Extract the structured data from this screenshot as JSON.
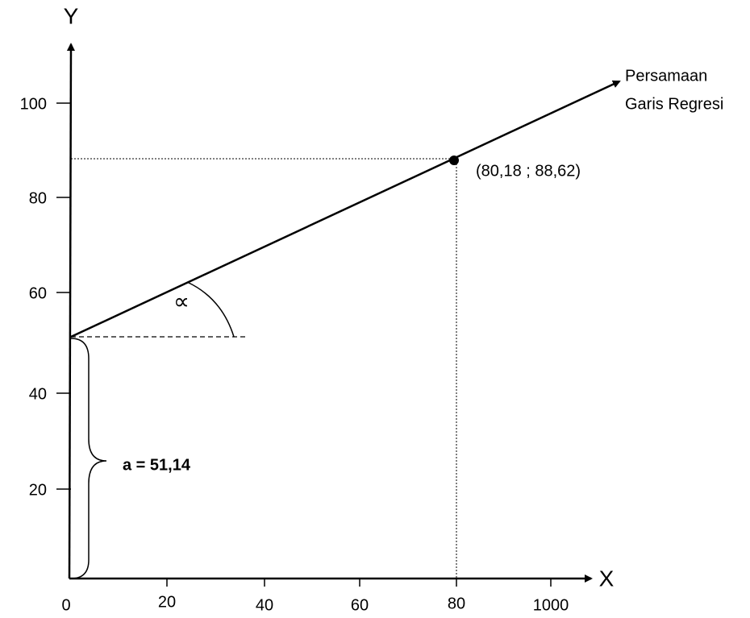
{
  "axes": {
    "y_label": "Y",
    "x_label": "X",
    "y_ticks": [
      "100",
      "80",
      "60",
      "40",
      "20"
    ],
    "x_ticks": [
      "0",
      "20",
      "40",
      "60",
      "80",
      "1000"
    ]
  },
  "annotations": {
    "angle": "∝",
    "intercept": "a = 51,14",
    "point": "(80,18 ; 88,62)",
    "line_label": [
      "Persamaan",
      "Garis Regresi"
    ]
  }
}
